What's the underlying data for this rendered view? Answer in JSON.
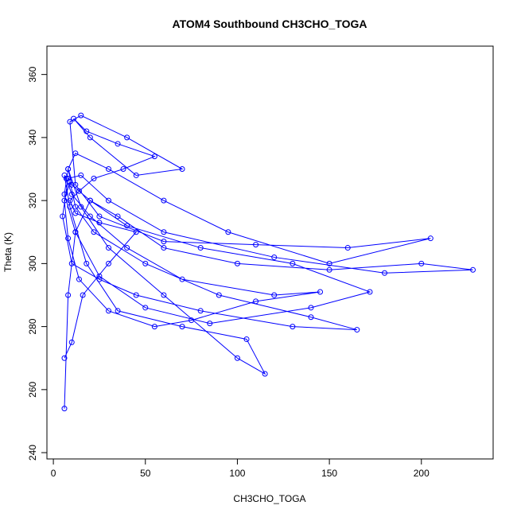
{
  "chart_data": {
    "type": "line",
    "markers": true,
    "title": "ATOM4 Southbound CH3CHO_TOGA",
    "x_label": "CH3CHO_TOGA",
    "y_label": "Theta (K)",
    "xlim": [
      -3.5,
      239
    ],
    "ylim": [
      238,
      369
    ],
    "xticks": [
      0,
      50,
      100,
      150,
      200
    ],
    "yticks": [
      240,
      260,
      280,
      300,
      320,
      340,
      360
    ],
    "series": [
      {
        "color": "#0000ff",
        "x": [
          6,
          8,
          12,
          20,
          35,
          60,
          100,
          150,
          200,
          228,
          180,
          120,
          60,
          30,
          15,
          8,
          5,
          10,
          25,
          45,
          80,
          130,
          165,
          140,
          90,
          50,
          22,
          12,
          9,
          6,
          8,
          14,
          30,
          55,
          75,
          110,
          145,
          120,
          70,
          40,
          20,
          10,
          7,
          6,
          9,
          18,
          35,
          70,
          105,
          115,
          100,
          60,
          30,
          15,
          8,
          6,
          12,
          25,
          50,
          85,
          140,
          172,
          130,
          80,
          40,
          20,
          10,
          8,
          12,
          30,
          60,
          95,
          150,
          205,
          160,
          110,
          60,
          25,
          12,
          9,
          15,
          40,
          70,
          45,
          20,
          11,
          18,
          35,
          55,
          38,
          22,
          14,
          9,
          12,
          25,
          45,
          30,
          16,
          10,
          6
        ],
        "values": [
          254,
          290,
          310,
          320,
          315,
          305,
          300,
          298,
          300,
          298,
          297,
          302,
          310,
          320,
          328,
          327,
          315,
          300,
          295,
          290,
          285,
          280,
          279,
          283,
          290,
          300,
          310,
          318,
          326,
          320,
          308,
          295,
          285,
          280,
          282,
          288,
          291,
          290,
          295,
          305,
          315,
          322,
          327,
          328,
          318,
          300,
          285,
          280,
          276,
          265,
          270,
          290,
          305,
          318,
          330,
          322,
          310,
          296,
          286,
          281,
          286,
          291,
          300,
          305,
          312,
          320,
          325,
          330,
          335,
          330,
          320,
          310,
          300,
          308,
          305,
          306,
          307,
          315,
          325,
          345,
          347,
          340,
          330,
          328,
          340,
          346,
          342,
          338,
          334,
          330,
          327,
          323,
          320,
          316,
          313,
          310,
          300,
          290,
          275,
          270
        ]
      }
    ]
  }
}
